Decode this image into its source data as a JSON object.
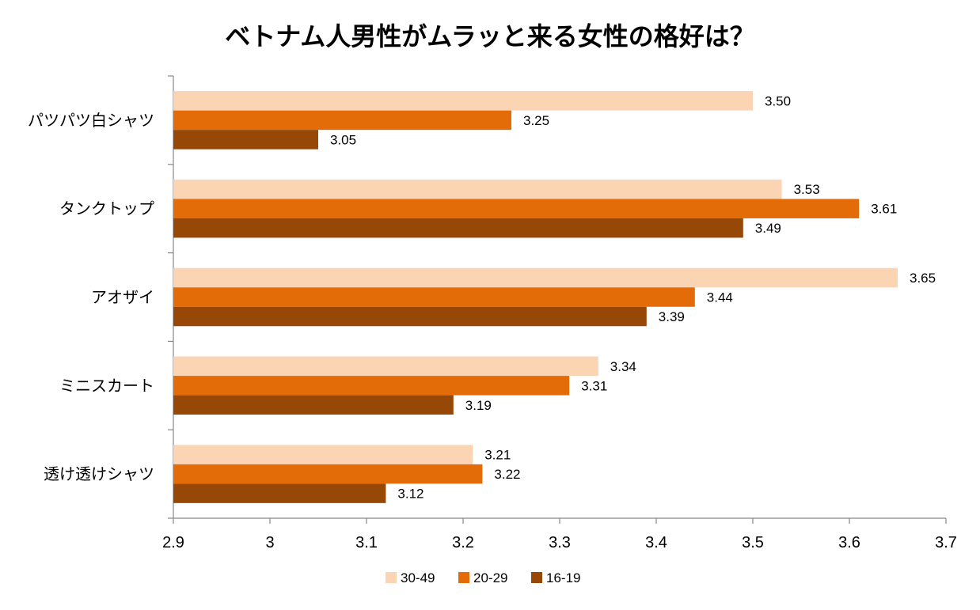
{
  "chart_data": {
    "type": "bar",
    "orientation": "horizontal",
    "title": "ベトナム人男性がムラッと来る女性の格好は？",
    "categories": [
      "パツパツ白シャツ",
      "タンクトップ",
      "アオザイ",
      "ミニスカート",
      "透け透けシャツ"
    ],
    "series": [
      {
        "name": "30-49",
        "color": "#FBD4B4",
        "values": [
          3.5,
          3.53,
          3.65,
          3.34,
          3.21
        ],
        "labels": [
          "3.50",
          "3.53",
          "3.65",
          "3.34",
          "3.21"
        ]
      },
      {
        "name": "20-29",
        "color": "#E36C09",
        "values": [
          3.25,
          3.61,
          3.44,
          3.31,
          3.22
        ],
        "labels": [
          "3.25",
          "3.61",
          "3.44",
          "3.31",
          "3.22"
        ]
      },
      {
        "name": "16-19",
        "color": "#974806",
        "values": [
          3.05,
          3.49,
          3.39,
          3.19,
          3.12
        ],
        "labels": [
          "3.05",
          "3.49",
          "3.39",
          "3.19",
          "3.12"
        ]
      }
    ],
    "xlim": [
      2.9,
      3.7
    ],
    "xticks": [
      2.9,
      3.0,
      3.1,
      3.2,
      3.3,
      3.4,
      3.5,
      3.6,
      3.7
    ],
    "xtick_labels": [
      "2.9",
      "3",
      "3.1",
      "3.2",
      "3.3",
      "3.4",
      "3.5",
      "3.6",
      "3.7"
    ],
    "xlabel": "",
    "ylabel": "",
    "grid": false,
    "legend_position": "bottom"
  }
}
